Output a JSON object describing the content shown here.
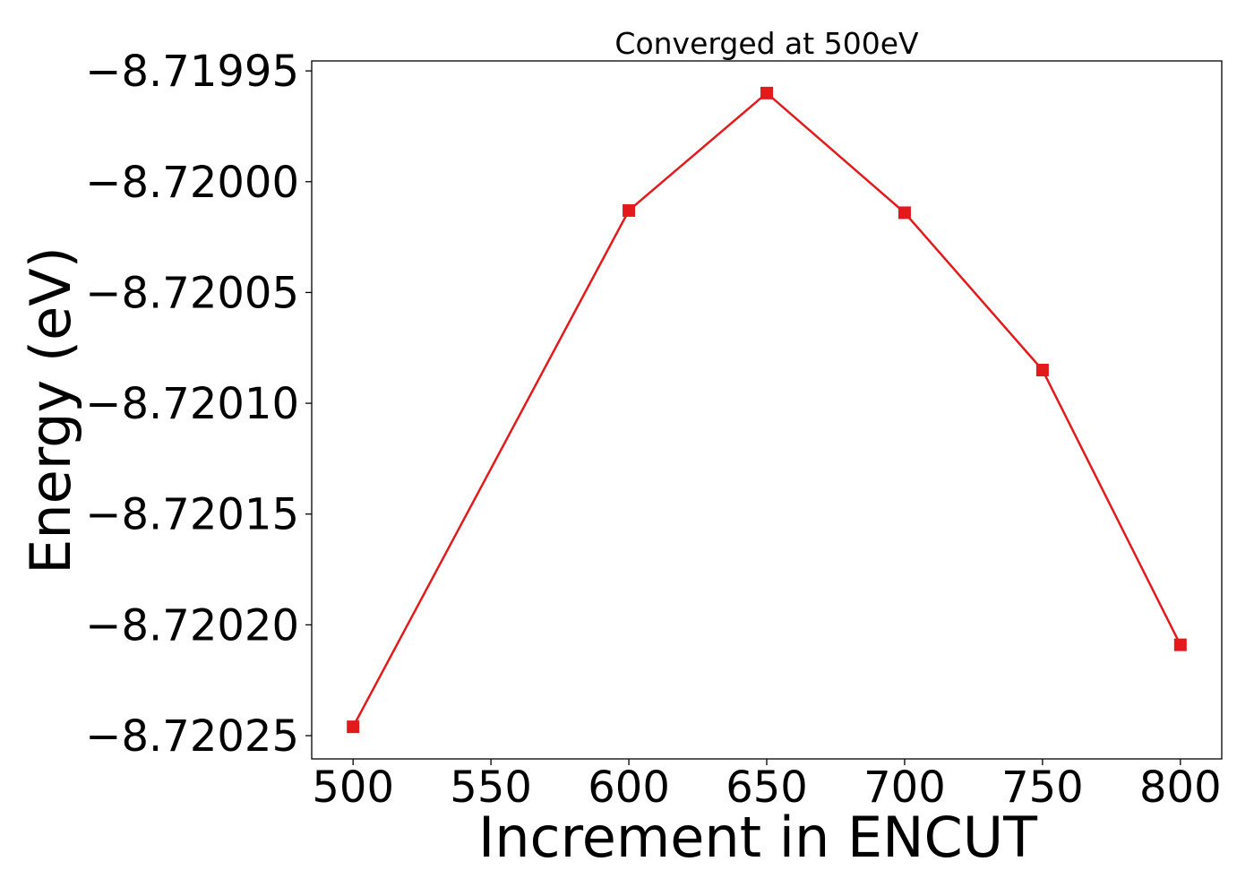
{
  "chart_data": {
    "type": "line",
    "title": "Converged at 500eV",
    "xlabel": "Increment in ENCUT",
    "ylabel": "Energy (eV)",
    "x": [
      500,
      600,
      650,
      700,
      750,
      800
    ],
    "series": [
      {
        "values": [
          -8.720246,
          -8.720013,
          -8.71996,
          -8.720014,
          -8.720085,
          -8.720209
        ]
      }
    ],
    "xlim": [
      485,
      815
    ],
    "ylim": [
      -8.7202605,
      -8.7199455
    ],
    "x_ticks": [
      500,
      550,
      600,
      650,
      700,
      750,
      800
    ],
    "x_tick_labels": [
      "500",
      "550",
      "600",
      "650",
      "700",
      "750",
      "800"
    ],
    "y_ticks": [
      -8.71995,
      -8.72,
      -8.72005,
      -8.7201,
      -8.72015,
      -8.7202,
      -8.72025
    ],
    "y_tick_labels": [
      "−8.71995",
      "−8.72000",
      "−8.72005",
      "−8.72010",
      "−8.72015",
      "−8.72020",
      "−8.72025"
    ],
    "line_color": "#e31a1c",
    "marker": "square",
    "grid": false
  }
}
